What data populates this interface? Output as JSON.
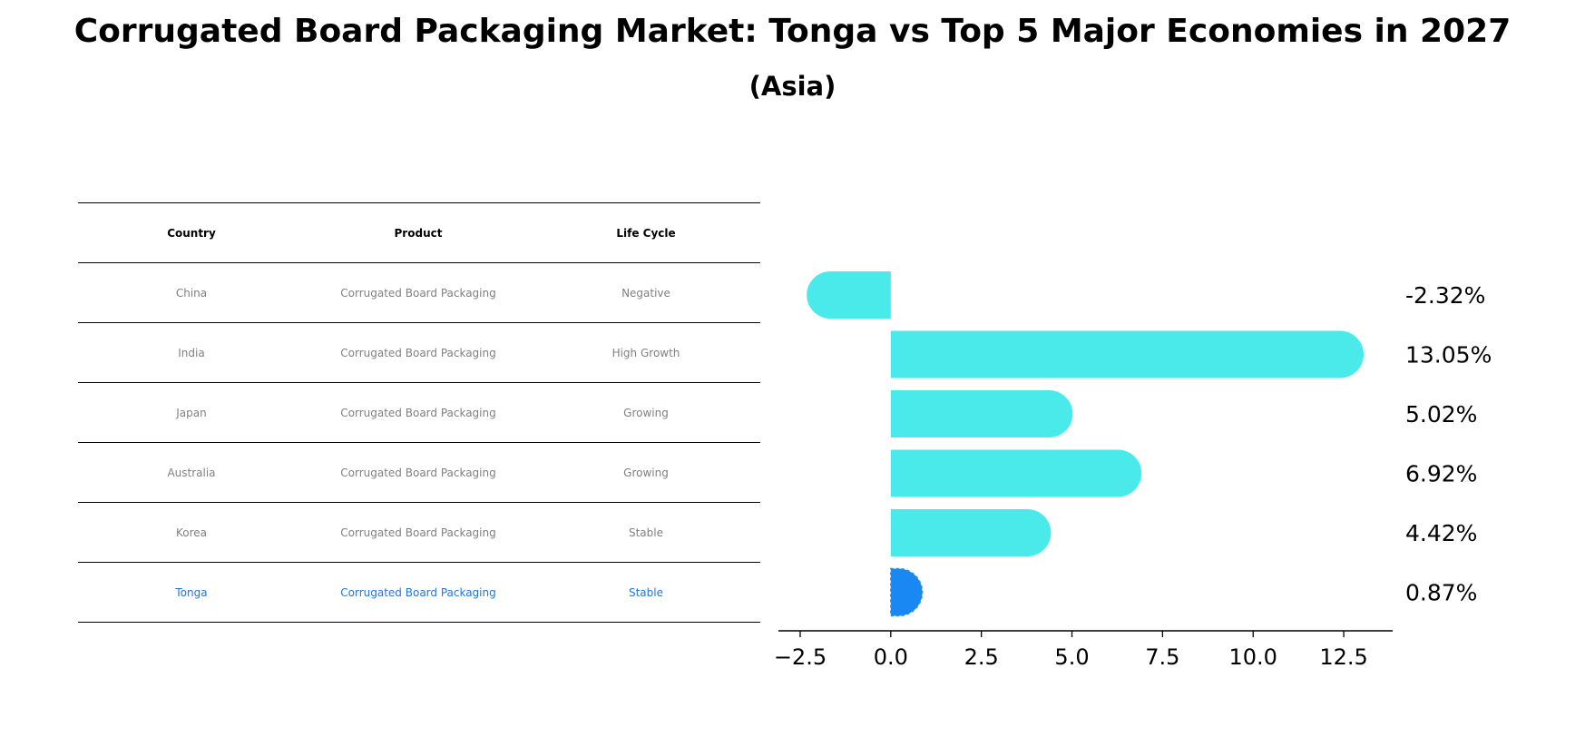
{
  "title": "Corrugated Board Packaging Market: Tonga vs Top 5 Major Economies in 2027",
  "subtitle": "(Asia)",
  "table": {
    "headers": [
      "Country",
      "Product",
      "Life Cycle"
    ],
    "rows": [
      [
        "China",
        "Corrugated Board Packaging",
        "Negative"
      ],
      [
        "India",
        "Corrugated Board Packaging",
        "High Growth"
      ],
      [
        "Japan",
        "Corrugated Board Packaging",
        "Growing"
      ],
      [
        "Australia",
        "Corrugated Board Packaging",
        "Growing"
      ],
      [
        "Korea",
        "Corrugated Board Packaging",
        "Stable"
      ],
      [
        "Tonga",
        "Corrugated Board Packaging",
        "Stable"
      ]
    ]
  },
  "chart_data": {
    "type": "bar",
    "orientation": "horizontal",
    "title": "Corrugated Board Packaging Market: Tonga vs Top 5 Major Economies in 2027",
    "subtitle": "(Asia)",
    "categories": [
      "China",
      "India",
      "Japan",
      "Australia",
      "Korea",
      "Tonga"
    ],
    "values": [
      -2.32,
      13.05,
      5.02,
      6.92,
      4.42,
      0.87
    ],
    "value_labels": [
      "-2.32%",
      "13.05%",
      "5.02%",
      "6.92%",
      "4.42%",
      "0.87%"
    ],
    "xlim": [
      -3.1,
      13.85
    ],
    "xticks": [
      -2.5,
      0.0,
      2.5,
      5.0,
      7.5,
      10.0,
      12.5
    ],
    "xtick_labels": [
      "−2.5",
      "0.0",
      "2.5",
      "5.0",
      "7.5",
      "10.0",
      "12.5"
    ],
    "xlabel": "",
    "ylabel": "",
    "grid": false,
    "colors": {
      "default": "#4aeaea",
      "highlight": "#1a88f2"
    },
    "highlight_category": "Tonga"
  }
}
